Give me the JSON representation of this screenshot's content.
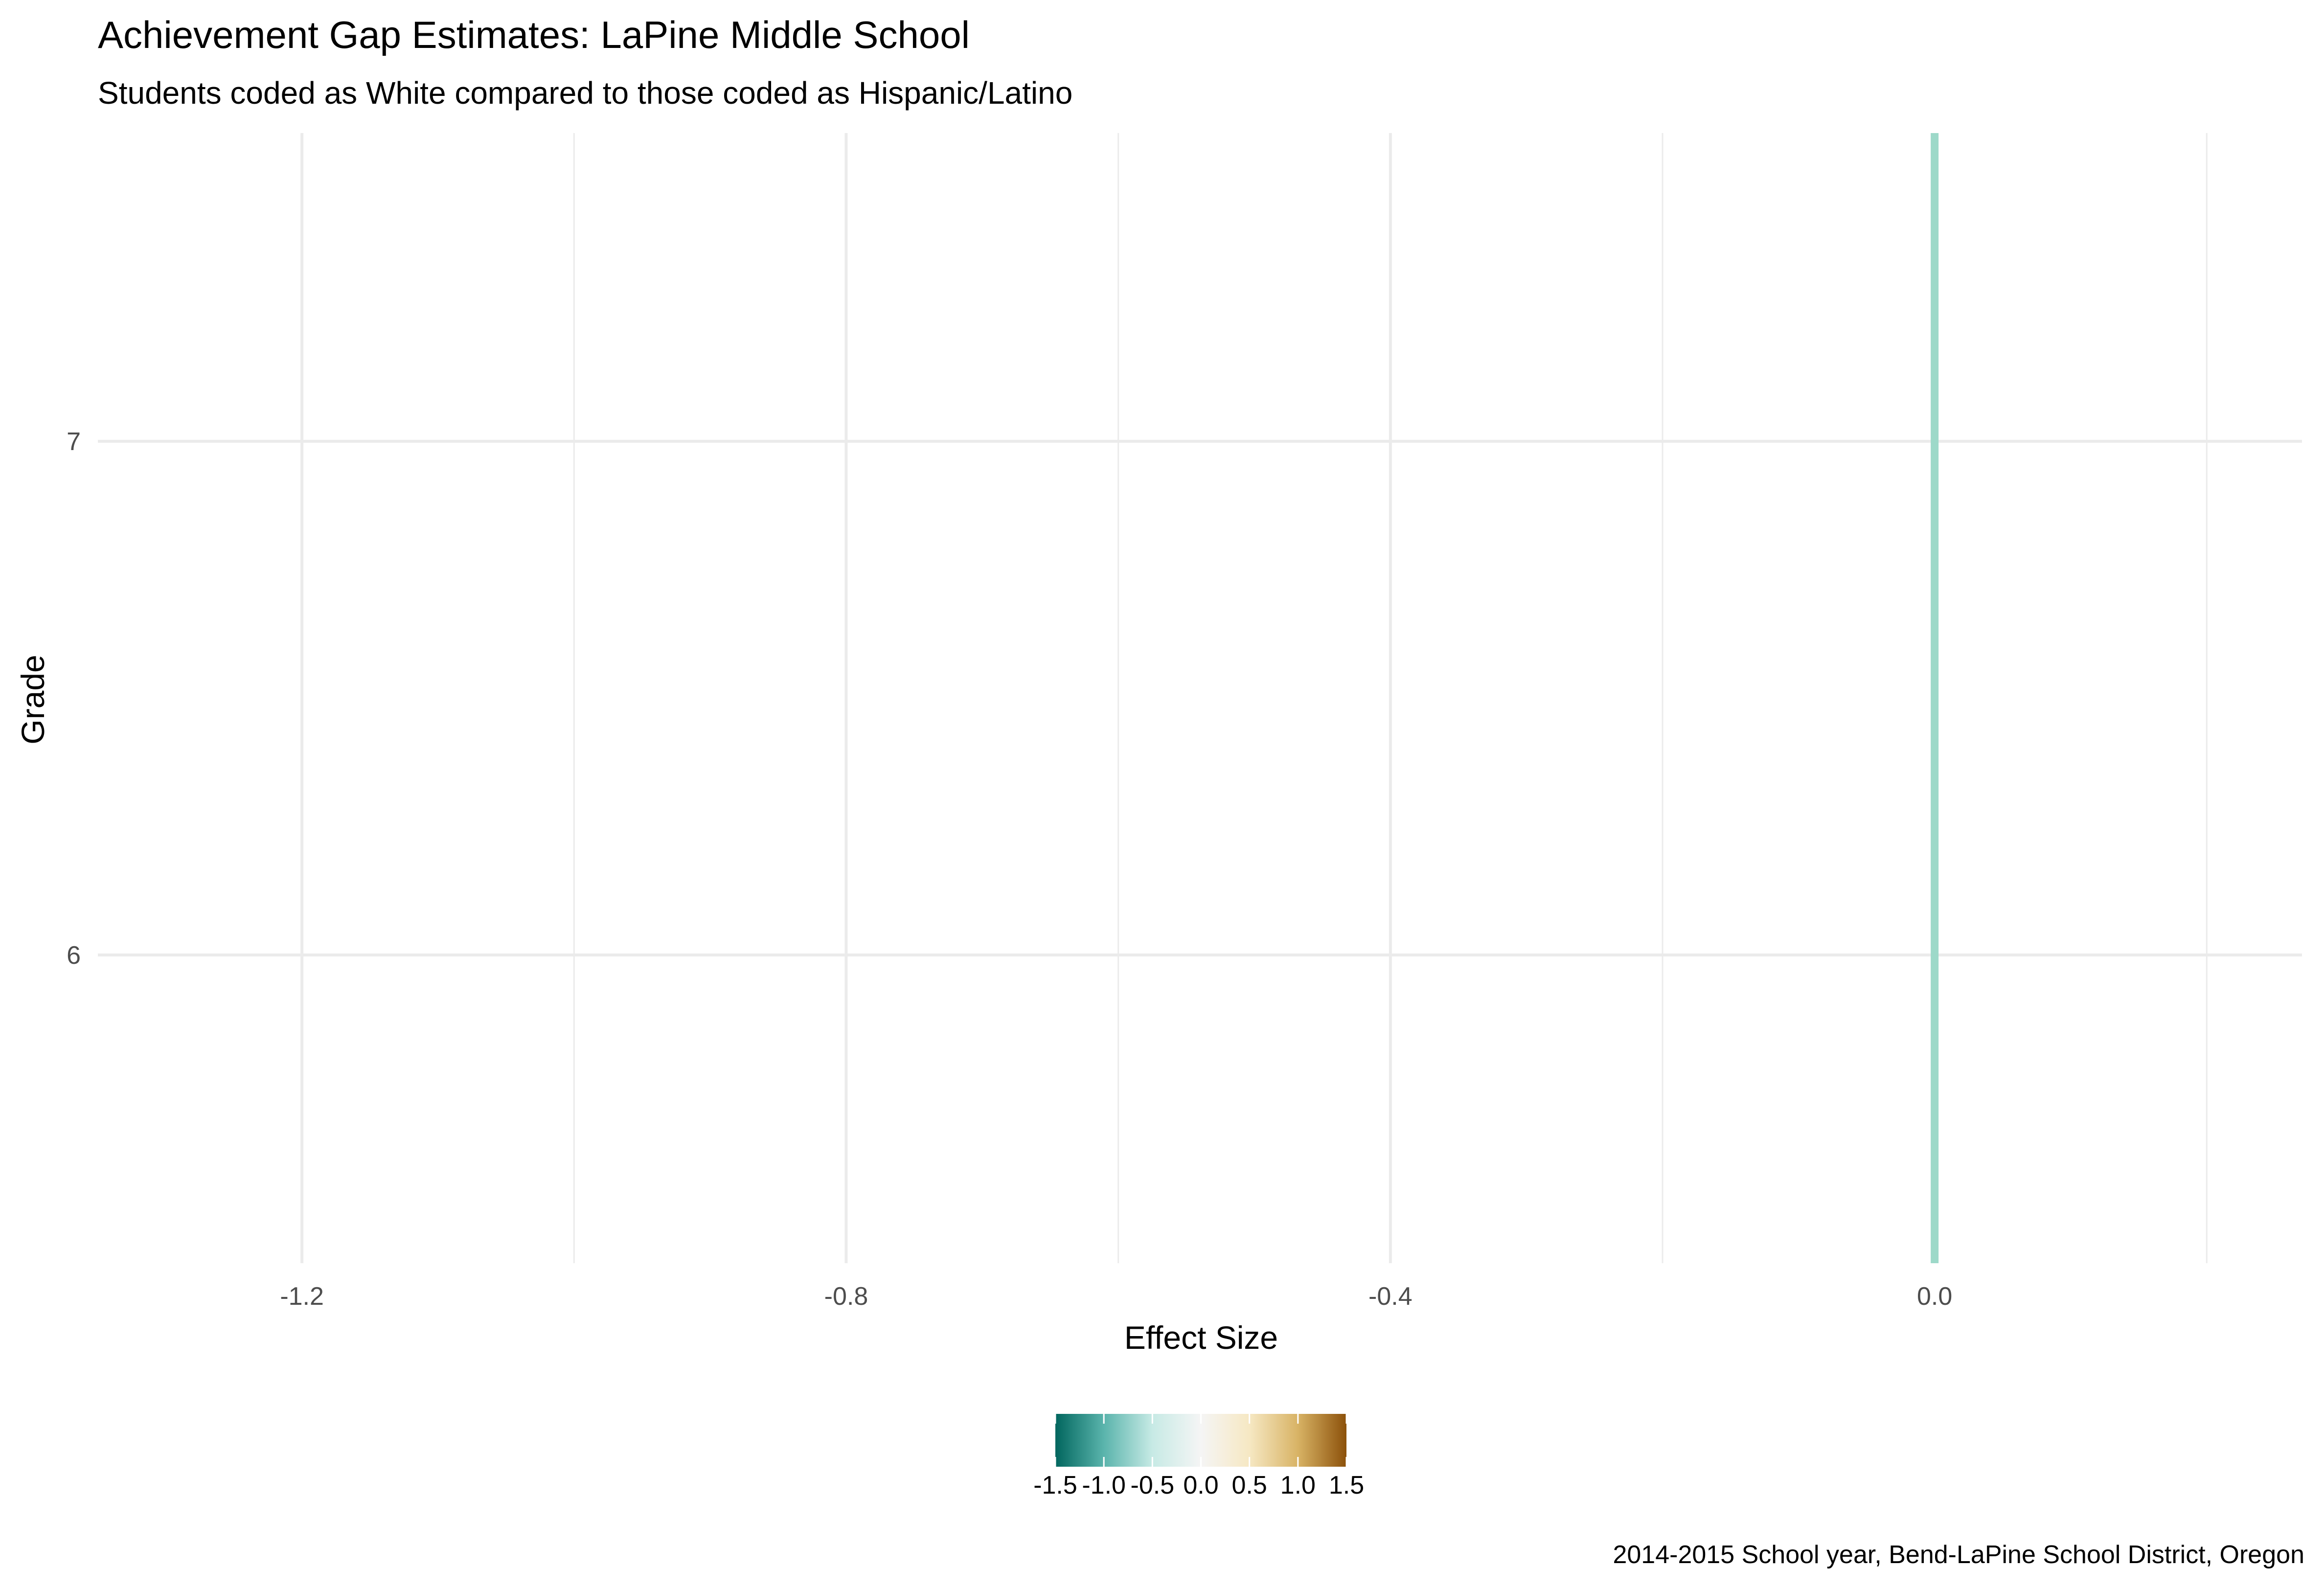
{
  "chart_data": {
    "type": "bar",
    "orientation": "horizontal",
    "title": "Achievement Gap Estimates: LaPine Middle School",
    "subtitle": "Students coded as White compared to those coded as Hispanic/Latino",
    "xlabel": "Effect Size",
    "ylabel": "Grade",
    "caption": "2014-2015 School year, Bend-LaPine School District, Oregon",
    "xlim": [
      -1.35,
      0.27
    ],
    "xticks": [
      -1.2,
      -0.8,
      -0.4,
      0.0
    ],
    "xtick_labels": [
      "-1.2",
      "-0.8",
      "-0.4",
      "0.0"
    ],
    "x_minor_ticks": [
      -1.0,
      -0.6,
      -0.2,
      0.2
    ],
    "categories": [
      "6",
      "7"
    ],
    "ylim": [
      5.4,
      7.6
    ],
    "values": [
      0.0,
      0.0
    ],
    "reference_line": {
      "x": 0.0,
      "color": "#9dd9c9"
    },
    "grid": true,
    "legend": {
      "type": "colorbar",
      "placement": "bottom",
      "limits": [
        -1.5,
        1.5
      ],
      "breaks": [
        -1.5,
        -1.0,
        -0.5,
        0.0,
        0.5,
        1.0,
        1.5
      ],
      "labels": [
        "-1.5",
        "-1.0",
        "-0.5",
        "0.0",
        "0.5",
        "1.0",
        "1.5"
      ],
      "palette": [
        "#01665e",
        "#5ab4ac",
        "#c7eae5",
        "#f5f5f5",
        "#f6e8c3",
        "#d8b365",
        "#8c510a"
      ]
    }
  }
}
